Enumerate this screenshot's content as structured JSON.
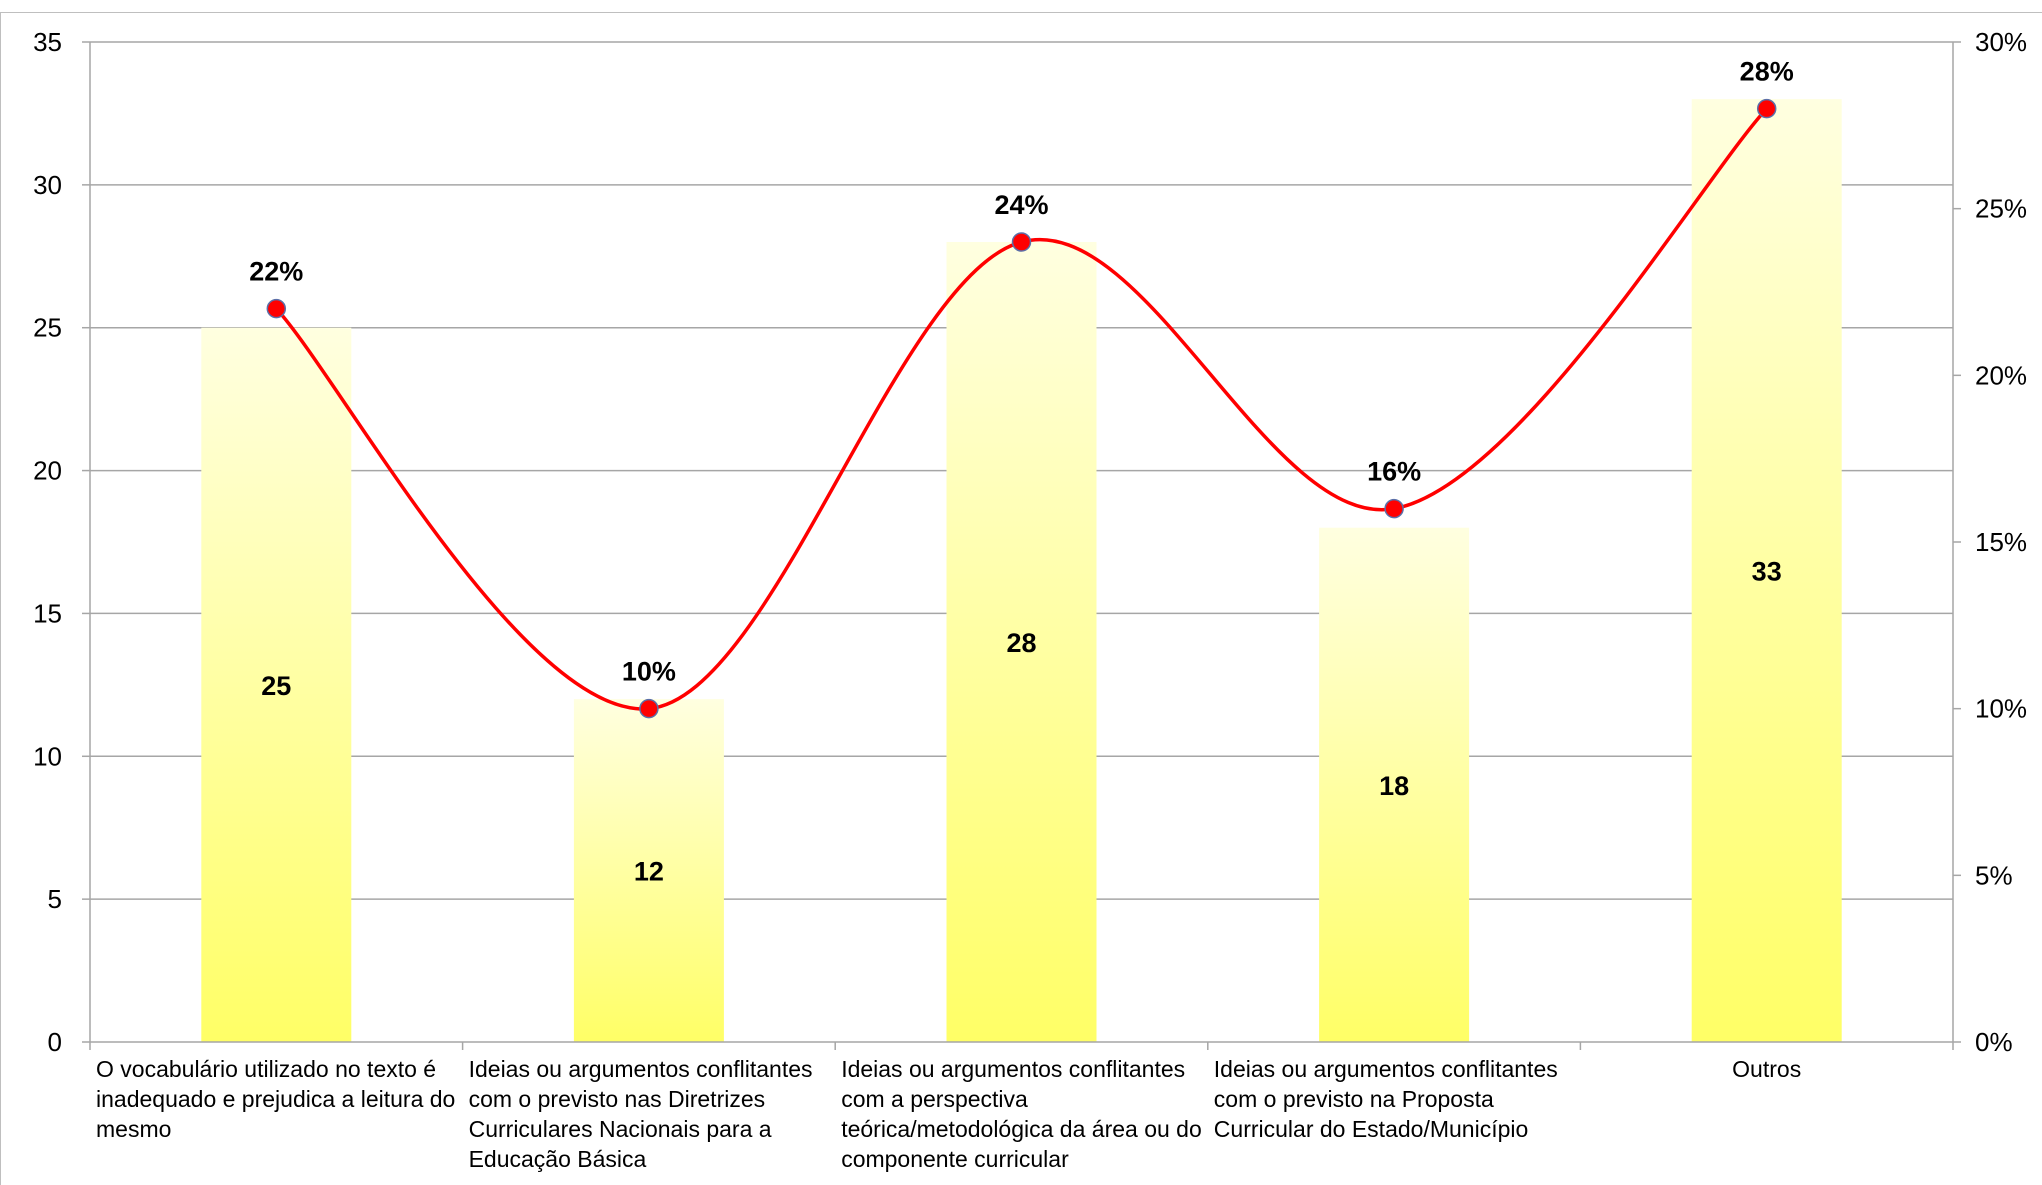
{
  "chart_data": {
    "type": "bar",
    "categories": [
      "O vocabulário utilizado no texto é inadequado e prejudica a leitura do mesmo",
      "Ideias ou argumentos conflitantes com o previsto nas Diretrizes Curriculares Nacionais para a Educação Básica",
      "Ideias ou argumentos conflitantes com a perspectiva teórica/metodológica da área ou do componente curricular",
      "Ideias ou argumentos conflitantes com o previsto na Proposta Curricular do Estado/Município",
      "Outros"
    ],
    "series": [
      {
        "type": "bar",
        "axis": "left",
        "values": [
          25,
          12,
          28,
          18,
          33
        ],
        "labels": [
          "25",
          "12",
          "28",
          "18",
          "33"
        ],
        "color": "#ffff66"
      },
      {
        "type": "line",
        "axis": "right",
        "values": [
          0.22,
          0.1,
          0.24,
          0.16,
          0.28
        ],
        "labels": [
          "22%",
          "10%",
          "24%",
          "16%",
          "28%"
        ],
        "color": "#ff0000"
      }
    ],
    "ylim": [
      0,
      35
    ],
    "y_ticks": [
      "0",
      "5",
      "10",
      "15",
      "20",
      "25",
      "30",
      "35"
    ],
    "y2lim": [
      0,
      0.3
    ],
    "y2_ticks": [
      "0%",
      "5%",
      "10%",
      "15%",
      "20%",
      "25%",
      "30%"
    ],
    "grid": true,
    "legend": "none"
  }
}
